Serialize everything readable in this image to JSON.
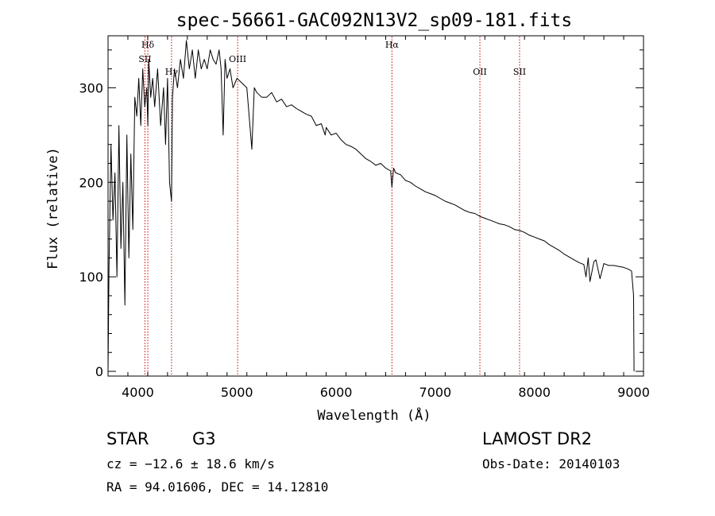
{
  "chart_data": {
    "type": "line",
    "title": "spec-56661-GAC092N13V2_sp09-181.fits",
    "xlabel": "Wavelength (Å)",
    "ylabel": "Flux (relative)",
    "xlim": [
      3700,
      9100
    ],
    "ylim": [
      -5,
      355
    ],
    "x_ticks": [
      "4000",
      "5000",
      "6000",
      "7000",
      "8000",
      "9000"
    ],
    "y_ticks": [
      "0",
      "100",
      "200",
      "300"
    ],
    "grid": false,
    "series": [
      {
        "color": "#000000",
        "x": [
          3700,
          3710,
          3730,
          3750,
          3770,
          3790,
          3810,
          3830,
          3850,
          3870,
          3890,
          3910,
          3930,
          3950,
          3970,
          3990,
          4010,
          4030,
          4050,
          4070,
          4090,
          4101,
          4110,
          4130,
          4150,
          4170,
          4200,
          4230,
          4260,
          4280,
          4300,
          4320,
          4340,
          4350,
          4370,
          4400,
          4430,
          4460,
          4490,
          4520,
          4550,
          4580,
          4610,
          4640,
          4670,
          4700,
          4730,
          4760,
          4790,
          4820,
          4840,
          4861,
          4880,
          4900,
          4930,
          4960,
          5000,
          5050,
          5100,
          5150,
          5175,
          5200,
          5250,
          5300,
          5350,
          5400,
          5450,
          5500,
          5550,
          5600,
          5650,
          5700,
          5750,
          5800,
          5850,
          5890,
          5900,
          5950,
          6000,
          6050,
          6100,
          6150,
          6200,
          6250,
          6300,
          6350,
          6400,
          6450,
          6500,
          6550,
          6563,
          6580,
          6600,
          6650,
          6700,
          6750,
          6800,
          6850,
          6900,
          6950,
          7000,
          7050,
          7100,
          7150,
          7200,
          7250,
          7300,
          7350,
          7400,
          7450,
          7500,
          7550,
          7600,
          7650,
          7700,
          7750,
          7800,
          7850,
          7900,
          7950,
          8000,
          8050,
          8100,
          8150,
          8200,
          8250,
          8300,
          8350,
          8400,
          8450,
          8498,
          8520,
          8542,
          8560,
          8600,
          8620,
          8662,
          8700,
          8750,
          8800,
          8850,
          8900,
          8950,
          8980,
          9000,
          9005
        ],
        "y": [
          0,
          110,
          240,
          160,
          210,
          100,
          260,
          130,
          200,
          70,
          250,
          120,
          230,
          150,
          290,
          270,
          310,
          260,
          320,
          280,
          300,
          260,
          330,
          290,
          310,
          280,
          320,
          260,
          300,
          240,
          310,
          200,
          180,
          290,
          320,
          300,
          330,
          310,
          350,
          320,
          340,
          310,
          340,
          320,
          330,
          320,
          340,
          330,
          325,
          340,
          320,
          250,
          330,
          310,
          320,
          300,
          310,
          305,
          300,
          235,
          300,
          295,
          290,
          290,
          295,
          285,
          288,
          280,
          282,
          278,
          275,
          272,
          270,
          260,
          262,
          250,
          258,
          250,
          252,
          245,
          240,
          238,
          235,
          230,
          225,
          222,
          218,
          220,
          215,
          212,
          195,
          215,
          210,
          208,
          202,
          200,
          196,
          193,
          190,
          188,
          186,
          183,
          180,
          178,
          176,
          173,
          170,
          168,
          167,
          164,
          162,
          160,
          158,
          156,
          155,
          153,
          150,
          149,
          147,
          144,
          142,
          140,
          138,
          134,
          131,
          128,
          124,
          121,
          118,
          115,
          113,
          100,
          120,
          95,
          116,
          118,
          98,
          114,
          112,
          112,
          111,
          110,
          108,
          106,
          80,
          0
        ]
      }
    ],
    "line_markers": [
      {
        "label": "Hδ",
        "x": 4101,
        "label_row": 0
      },
      {
        "label": "SII",
        "x": 4072,
        "label_row": 1
      },
      {
        "label": "Hγ",
        "x": 4340,
        "label_row": 2
      },
      {
        "label": "OIII",
        "x": 5007,
        "label_row": 1
      },
      {
        "label": "Hα",
        "x": 6563,
        "label_row": 0
      },
      {
        "label": "OII",
        "x": 7450,
        "label_row": 2
      },
      {
        "label": "SII",
        "x": 7850,
        "label_row": 2
      }
    ]
  },
  "info": {
    "object_class": "STAR",
    "subclass": "G3",
    "survey": "LAMOST DR2",
    "redshift_line": "cz = −12.6 ± 18.6 km/s",
    "obs_date": "Obs-Date: 20140103",
    "coords": "RA =  94.01606, DEC =  14.12810"
  }
}
